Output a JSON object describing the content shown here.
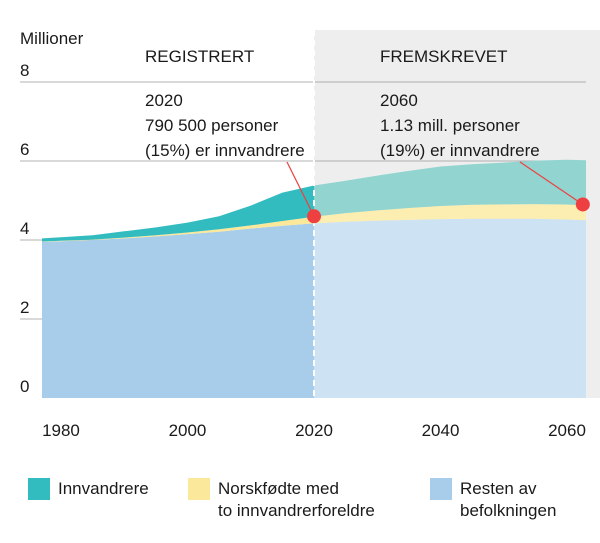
{
  "chart_data": {
    "type": "area",
    "stacked": true,
    "ylabel": "Millioner",
    "ylim": [
      0,
      8
    ],
    "yticks": [
      0,
      2,
      4,
      6,
      8
    ],
    "xlim": [
      1977,
      2063
    ],
    "xticks": [
      1980,
      2000,
      2020,
      2040,
      2060
    ],
    "split_year": 2020,
    "sections": {
      "left": "REGISTRERT",
      "right": "FREMSKREVET"
    },
    "annotations": [
      {
        "year": "2020",
        "line1": "790 500 personer",
        "line2": "(15%) er innvandrere",
        "point": {
          "x": 2020,
          "y": 4.6
        }
      },
      {
        "year": "2060",
        "line1": "1.13 mill. personer",
        "line2": "(19%) er innvandrere",
        "point": {
          "x": 2062.5,
          "y": 4.9
        }
      }
    ],
    "x": [
      1977,
      1980,
      1985,
      1990,
      1995,
      2000,
      2005,
      2010,
      2015,
      2020,
      2025,
      2030,
      2035,
      2040,
      2045,
      2050,
      2055,
      2060,
      2063
    ],
    "series": [
      {
        "name": "Resten av befolkningen",
        "color_hist": "#a8cdea",
        "color_proj": "#cde3f3",
        "values": [
          3.95,
          3.97,
          4.0,
          4.04,
          4.09,
          4.15,
          4.21,
          4.29,
          4.36,
          4.42,
          4.46,
          4.49,
          4.51,
          4.53,
          4.54,
          4.54,
          4.54,
          4.52,
          4.5
        ]
      },
      {
        "name": "Norskfødte med to innvandrerforeldre",
        "color_hist": "#fbe89a",
        "color_proj": "#fbeeb0",
        "values": [
          0.01,
          0.01,
          0.01,
          0.02,
          0.03,
          0.04,
          0.06,
          0.08,
          0.12,
          0.17,
          0.22,
          0.26,
          0.3,
          0.33,
          0.35,
          0.36,
          0.37,
          0.38,
          0.38
        ]
      },
      {
        "name": "Innvandrere",
        "color_hist": "#33bcc0",
        "color_proj": "#92d4d0",
        "values": [
          0.08,
          0.09,
          0.11,
          0.16,
          0.2,
          0.25,
          0.33,
          0.5,
          0.72,
          0.79,
          0.82,
          0.88,
          0.94,
          1.0,
          1.03,
          1.06,
          1.1,
          1.13,
          1.14
        ]
      }
    ],
    "legend": [
      {
        "label": "Innvandrere",
        "color": "#33bcc0"
      },
      {
        "label": "Norskfødte med\nto innvandrerforeldre",
        "color": "#fbe89a"
      },
      {
        "label": "Resten av\nbefolkningen",
        "color": "#a8cdea"
      }
    ],
    "projection_bg": "#eeeeee",
    "marker_color": "#ee4040"
  }
}
